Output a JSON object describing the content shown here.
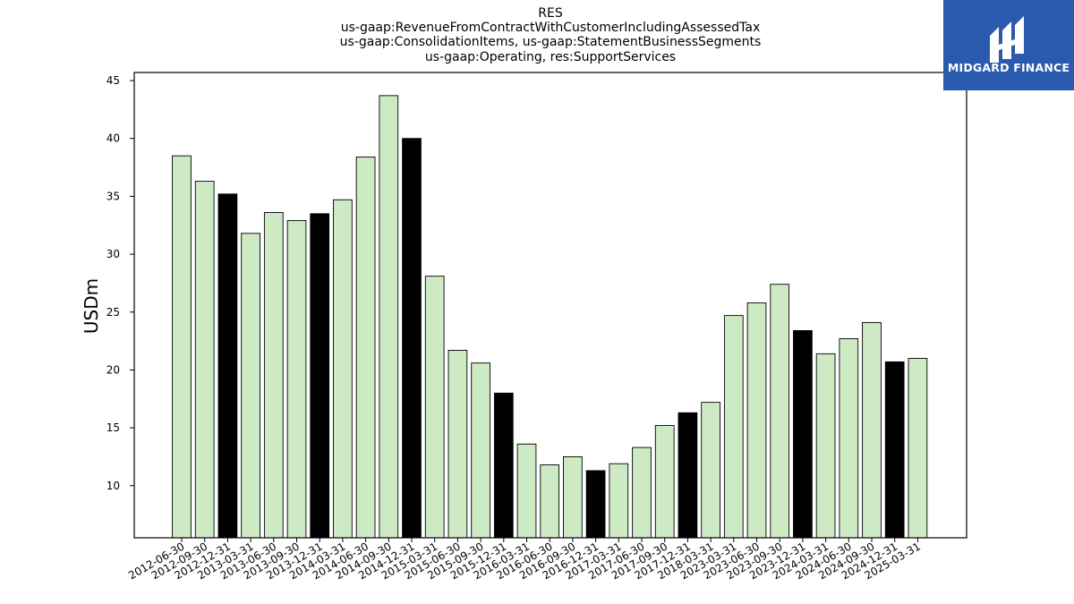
{
  "title_lines": [
    "RES",
    "us-gaap:RevenueFromContractWithCustomerIncludingAssessedTax",
    "us-gaap:ConsolidationItems, us-gaap:StatementBusinessSegments",
    "us-gaap:Operating, res:SupportServices"
  ],
  "logo": {
    "text": "MIDGARD FINANCE",
    "background": "#2a5aae"
  },
  "chart_data": {
    "type": "bar",
    "ylabel": "USDm",
    "xlabel": "",
    "ylim": [
      5.5,
      45.7
    ],
    "yticks": [
      10,
      15,
      20,
      25,
      30,
      35,
      40,
      45
    ],
    "grid": false,
    "colors": {
      "regular": "#cdeac5",
      "highlight": "#000000",
      "edge": "#000000"
    },
    "categories": [
      "2012-06-30",
      "2012-09-30",
      "2012-12-31",
      "2013-03-31",
      "2013-06-30",
      "2013-09-30",
      "2013-12-31",
      "2014-03-31",
      "2014-06-30",
      "2014-09-30",
      "2014-12-31",
      "2015-03-31",
      "2015-06-30",
      "2015-09-30",
      "2015-12-31",
      "2016-03-31",
      "2016-06-30",
      "2016-09-30",
      "2016-12-31",
      "2017-03-31",
      "2017-06-30",
      "2017-09-30",
      "2017-12-31",
      "2018-03-31",
      "2023-03-31",
      "2023-06-30",
      "2023-09-30",
      "2023-12-31",
      "2024-03-31",
      "2024-06-30",
      "2024-09-30",
      "2024-12-31",
      "2025-03-31"
    ],
    "values": [
      38.5,
      36.3,
      35.2,
      31.8,
      33.6,
      32.9,
      33.5,
      34.7,
      38.4,
      43.7,
      40.0,
      28.1,
      21.7,
      20.6,
      18.0,
      13.6,
      11.8,
      12.5,
      11.3,
      11.9,
      13.3,
      15.2,
      16.3,
      17.2,
      24.7,
      25.8,
      27.4,
      23.4,
      21.4,
      22.7,
      24.1,
      20.7,
      21.0
    ],
    "highlight": [
      false,
      false,
      true,
      false,
      false,
      false,
      true,
      false,
      false,
      false,
      true,
      false,
      false,
      false,
      true,
      false,
      false,
      false,
      true,
      false,
      false,
      false,
      true,
      false,
      false,
      false,
      false,
      true,
      false,
      false,
      false,
      true,
      false
    ]
  }
}
